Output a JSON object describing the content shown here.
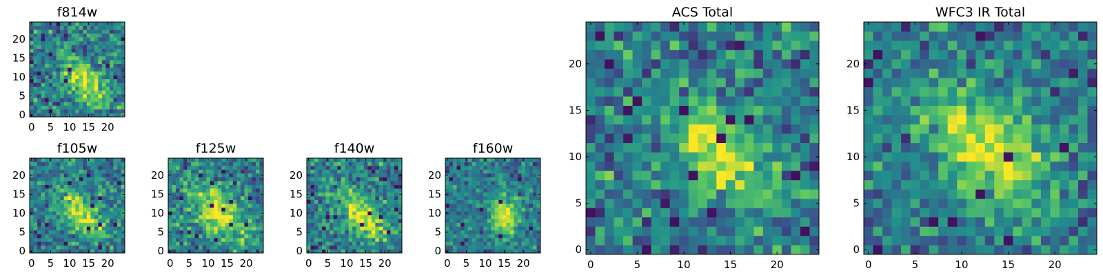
{
  "figure": {
    "background": "#ffffff"
  },
  "colormap": {
    "name": "viridis",
    "stops": [
      "#440154",
      "#3b528b",
      "#21918c",
      "#5ec962",
      "#fde725"
    ]
  },
  "chart_data": [
    {
      "id": "f814w",
      "type": "heatmap",
      "title": "f814w",
      "grid": [
        25,
        25
      ],
      "xlim": [
        -0.5,
        24.5
      ],
      "ylim": [
        -0.5,
        24.5
      ],
      "xticks": [
        0,
        5,
        10,
        15,
        20
      ],
      "yticks": [
        0,
        5,
        10,
        15,
        20
      ],
      "peak": {
        "x": 14,
        "y": 9
      },
      "spread": 4.5,
      "elongation": "diagonal",
      "noise": 0.3,
      "seed": 11
    },
    {
      "id": "f105w",
      "type": "heatmap",
      "title": "f105w",
      "grid": [
        25,
        25
      ],
      "xlim": [
        -0.5,
        24.5
      ],
      "ylim": [
        -0.5,
        24.5
      ],
      "xticks": [
        0,
        5,
        10,
        15,
        20
      ],
      "yticks": [
        0,
        5,
        10,
        15,
        20
      ],
      "peak": {
        "x": 13,
        "y": 10
      },
      "spread": 4.5,
      "elongation": "diagonal",
      "noise": 0.26,
      "seed": 23
    },
    {
      "id": "f125w",
      "type": "heatmap",
      "title": "f125w",
      "grid": [
        25,
        25
      ],
      "xlim": [
        -0.5,
        24.5
      ],
      "ylim": [
        -0.5,
        24.5
      ],
      "xticks": [
        0,
        5,
        10,
        15,
        20
      ],
      "yticks": [
        0,
        5,
        10,
        15,
        20
      ],
      "peak": {
        "x": 13,
        "y": 10
      },
      "spread": 6.0,
      "elongation": "diagonal",
      "noise": 0.28,
      "seed": 37
    },
    {
      "id": "f140w",
      "type": "heatmap",
      "title": "f140w",
      "grid": [
        25,
        25
      ],
      "xlim": [
        -0.5,
        24.5
      ],
      "ylim": [
        -0.5,
        24.5
      ],
      "xticks": [
        0,
        5,
        10,
        15,
        20
      ],
      "yticks": [
        0,
        5,
        10,
        15,
        20
      ],
      "peak": {
        "x": 14,
        "y": 9
      },
      "spread": 5.0,
      "elongation": "diagonal",
      "noise": 0.28,
      "seed": 41
    },
    {
      "id": "f160w",
      "type": "heatmap",
      "title": "f160w",
      "grid": [
        25,
        25
      ],
      "xlim": [
        -0.5,
        24.5
      ],
      "ylim": [
        -0.5,
        24.5
      ],
      "xticks": [
        0,
        5,
        10,
        15,
        20
      ],
      "yticks": [
        0,
        5,
        10,
        15,
        20
      ],
      "peak": {
        "x": 15,
        "y": 9
      },
      "spread": 4.0,
      "elongation": "vertical",
      "noise": 0.22,
      "seed": 53
    },
    {
      "id": "acs_total",
      "type": "heatmap",
      "title": "ACS Total",
      "grid": [
        25,
        25
      ],
      "xlim": [
        -0.5,
        24.5
      ],
      "ylim": [
        -0.5,
        24.5
      ],
      "xticks": [
        0,
        5,
        10,
        15,
        20
      ],
      "yticks": [
        0,
        5,
        10,
        15,
        20
      ],
      "peak": {
        "x": 14,
        "y": 10
      },
      "spread": 4.5,
      "elongation": "diagonal",
      "noise": 0.3,
      "seed": 67
    },
    {
      "id": "wfc3_ir_total",
      "type": "heatmap",
      "title": "WFC3 IR Total",
      "grid": [
        25,
        25
      ],
      "xlim": [
        -0.5,
        24.5
      ],
      "ylim": [
        -0.5,
        24.5
      ],
      "xticks": [
        0,
        5,
        10,
        15,
        20
      ],
      "yticks": [
        0,
        5,
        10,
        15,
        20
      ],
      "peak": {
        "x": 13,
        "y": 11
      },
      "spread": 5.0,
      "elongation": "diagonal",
      "noise": 0.26,
      "seed": 79
    }
  ]
}
